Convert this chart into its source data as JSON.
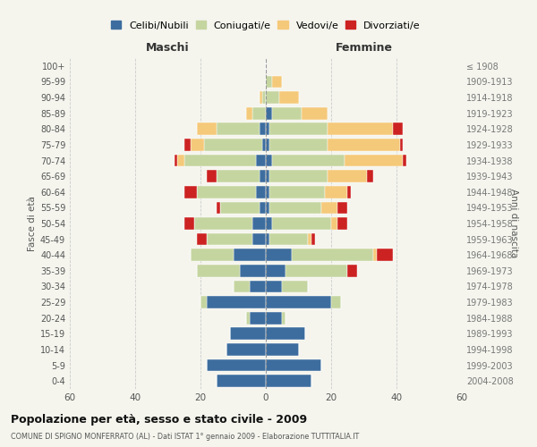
{
  "age_groups_bottom_to_top": [
    "0-4",
    "5-9",
    "10-14",
    "15-19",
    "20-24",
    "25-29",
    "30-34",
    "35-39",
    "40-44",
    "45-49",
    "50-54",
    "55-59",
    "60-64",
    "65-69",
    "70-74",
    "75-79",
    "80-84",
    "85-89",
    "90-94",
    "95-99",
    "100+"
  ],
  "birth_years_bottom_to_top": [
    "2004-2008",
    "1999-2003",
    "1994-1998",
    "1989-1993",
    "1984-1988",
    "1979-1983",
    "1974-1978",
    "1969-1973",
    "1964-1968",
    "1959-1963",
    "1954-1958",
    "1949-1953",
    "1944-1948",
    "1939-1943",
    "1934-1938",
    "1929-1933",
    "1924-1928",
    "1919-1923",
    "1914-1918",
    "1909-1913",
    "≤ 1908"
  ],
  "colors": {
    "celibe": "#3d6d9e",
    "coniugato": "#c5d5a0",
    "vedovo": "#f5c97a",
    "divorziato": "#cc2222"
  },
  "maschi": {
    "celibe": [
      15,
      18,
      12,
      11,
      5,
      18,
      5,
      8,
      10,
      4,
      4,
      2,
      3,
      2,
      3,
      1,
      2,
      0,
      0,
      0,
      0
    ],
    "coniugato": [
      0,
      0,
      0,
      0,
      1,
      2,
      5,
      13,
      13,
      14,
      18,
      12,
      18,
      13,
      22,
      18,
      13,
      4,
      1,
      0,
      0
    ],
    "vedovo": [
      0,
      0,
      0,
      0,
      0,
      0,
      0,
      0,
      0,
      0,
      0,
      0,
      0,
      0,
      2,
      4,
      6,
      2,
      1,
      0,
      0
    ],
    "divorziato": [
      0,
      0,
      0,
      0,
      0,
      0,
      0,
      0,
      0,
      3,
      3,
      1,
      4,
      3,
      1,
      2,
      0,
      0,
      0,
      0,
      0
    ]
  },
  "femmine": {
    "nubile": [
      14,
      17,
      10,
      12,
      5,
      20,
      5,
      6,
      8,
      1,
      2,
      1,
      1,
      1,
      2,
      1,
      1,
      2,
      0,
      0,
      0
    ],
    "coniugata": [
      0,
      0,
      0,
      0,
      1,
      3,
      8,
      19,
      25,
      12,
      18,
      16,
      17,
      18,
      22,
      18,
      18,
      9,
      4,
      2,
      0
    ],
    "vedova": [
      0,
      0,
      0,
      0,
      0,
      0,
      0,
      0,
      1,
      1,
      2,
      5,
      7,
      12,
      18,
      22,
      20,
      8,
      6,
      3,
      0
    ],
    "divorziata": [
      0,
      0,
      0,
      0,
      0,
      0,
      0,
      3,
      5,
      1,
      3,
      3,
      1,
      2,
      1,
      1,
      3,
      0,
      0,
      0,
      0
    ]
  },
  "xlim": 60,
  "title": "Popolazione per età, sesso e stato civile - 2009",
  "subtitle": "COMUNE DI SPIGNO MONFERRATO (AL) - Dati ISTAT 1° gennaio 2009 - Elaborazione TUTTITALIA.IT",
  "xlabel_left": "Maschi",
  "xlabel_right": "Femmine",
  "ylabel_left": "Fasce di età",
  "ylabel_right": "Anni di nascita",
  "legend_labels": [
    "Celibi/Nubili",
    "Coniugati/e",
    "Vedovi/e",
    "Divorziati/e"
  ],
  "bg_color": "#f5f5ee",
  "grid_color": "#cccccc"
}
